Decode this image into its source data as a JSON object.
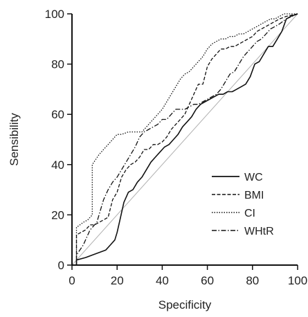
{
  "chart_data": {
    "type": "line",
    "title": "",
    "xlabel": "Specificity",
    "ylabel": "Sensibility",
    "xlim": [
      0,
      100
    ],
    "ylim": [
      0,
      100
    ],
    "xticks": [
      0,
      20,
      40,
      60,
      80,
      100
    ],
    "yticks": [
      0,
      20,
      40,
      60,
      80,
      100
    ],
    "grid": false,
    "legend_position": "bottom-right",
    "reference_line": {
      "x": [
        0,
        100
      ],
      "y": [
        0,
        100
      ],
      "color": "#b0b0b0"
    },
    "series": [
      {
        "name": "WC",
        "style": "solid",
        "color": "#111111",
        "x": [
          0,
          2,
          2,
          6,
          9,
          12,
          15,
          17,
          19,
          20,
          21,
          23,
          25,
          27,
          29,
          31,
          33,
          35,
          37,
          39,
          41,
          43,
          45,
          47,
          49,
          51,
          53,
          55,
          57,
          59,
          61,
          63,
          65,
          67,
          69,
          71,
          73,
          75,
          77,
          79,
          81,
          83,
          85,
          87,
          89,
          91,
          93,
          95,
          97,
          100
        ],
        "y": [
          0,
          0,
          2,
          3,
          4,
          5,
          6,
          8,
          10,
          13,
          17,
          25,
          29,
          30,
          33,
          35,
          38,
          41,
          43,
          45,
          47,
          48,
          50,
          52,
          55,
          57,
          59,
          62,
          64,
          65,
          66,
          67,
          68,
          68,
          69,
          69,
          70,
          71,
          72,
          75,
          80,
          81,
          84,
          87,
          87,
          90,
          93,
          98,
          99,
          100
        ]
      },
      {
        "name": "BMI",
        "style": "dashed",
        "color": "#111111",
        "x": [
          0,
          2,
          2,
          4,
          6,
          8,
          10,
          12,
          14,
          16,
          18,
          20,
          22,
          24,
          26,
          28,
          30,
          32,
          34,
          36,
          38,
          40,
          42,
          44,
          46,
          48,
          50,
          52,
          54,
          56,
          58,
          60,
          62,
          64,
          66,
          68,
          70,
          72,
          74,
          76,
          78,
          80,
          82,
          84,
          86,
          88,
          90,
          92,
          95,
          100
        ],
        "y": [
          0,
          0,
          12,
          13,
          14,
          16,
          16,
          17,
          18,
          19,
          26,
          29,
          35,
          38,
          40,
          41,
          43,
          46,
          46,
          48,
          48,
          49,
          51,
          54,
          56,
          58,
          60,
          64,
          68,
          72,
          72,
          79,
          82,
          84,
          86,
          86,
          87,
          87,
          88,
          89,
          90,
          91,
          93,
          94,
          95,
          96,
          97,
          98,
          99,
          100
        ]
      },
      {
        "name": "CI",
        "style": "dotted",
        "color": "#111111",
        "x": [
          0,
          2,
          2,
          5,
          7,
          9,
          9,
          12,
          14,
          16,
          18,
          20,
          22,
          25,
          28,
          31,
          34,
          37,
          40,
          42,
          44,
          46,
          48,
          50,
          52,
          54,
          56,
          58,
          60,
          62,
          64,
          66,
          68,
          70,
          72,
          74,
          76,
          78,
          80,
          82,
          84,
          86,
          88,
          90,
          92,
          94,
          96,
          100
        ],
        "y": [
          0,
          0,
          15,
          17,
          18,
          20,
          40,
          44,
          46,
          48,
          50,
          52,
          52,
          53,
          53,
          53,
          56,
          59,
          62,
          65,
          68,
          71,
          74,
          76,
          77,
          79,
          81,
          83,
          86,
          88,
          89,
          90,
          90,
          91,
          91,
          92,
          92,
          93,
          94,
          95,
          96,
          97,
          98,
          98,
          99,
          100,
          100,
          100
        ]
      },
      {
        "name": "WHtR",
        "style": "dashdot",
        "color": "#111111",
        "x": [
          0,
          2,
          2,
          5,
          8,
          11,
          12,
          14,
          16,
          18,
          20,
          22,
          24,
          26,
          28,
          30,
          32,
          34,
          36,
          38,
          40,
          42,
          44,
          46,
          48,
          50,
          52,
          54,
          56,
          58,
          60,
          62,
          64,
          66,
          68,
          70,
          72,
          74,
          76,
          78,
          80,
          82,
          84,
          86,
          88,
          90,
          92,
          95,
          100
        ],
        "y": [
          0,
          0,
          4,
          8,
          14,
          17,
          20,
          26,
          30,
          33,
          35,
          38,
          41,
          44,
          47,
          51,
          53,
          54,
          55,
          56,
          58,
          58,
          60,
          62,
          62,
          62,
          63,
          64,
          64,
          65,
          66,
          67,
          68,
          70,
          73,
          76,
          77,
          80,
          83,
          85,
          87,
          89,
          90,
          92,
          94,
          95,
          96,
          98,
          100
        ]
      }
    ]
  }
}
